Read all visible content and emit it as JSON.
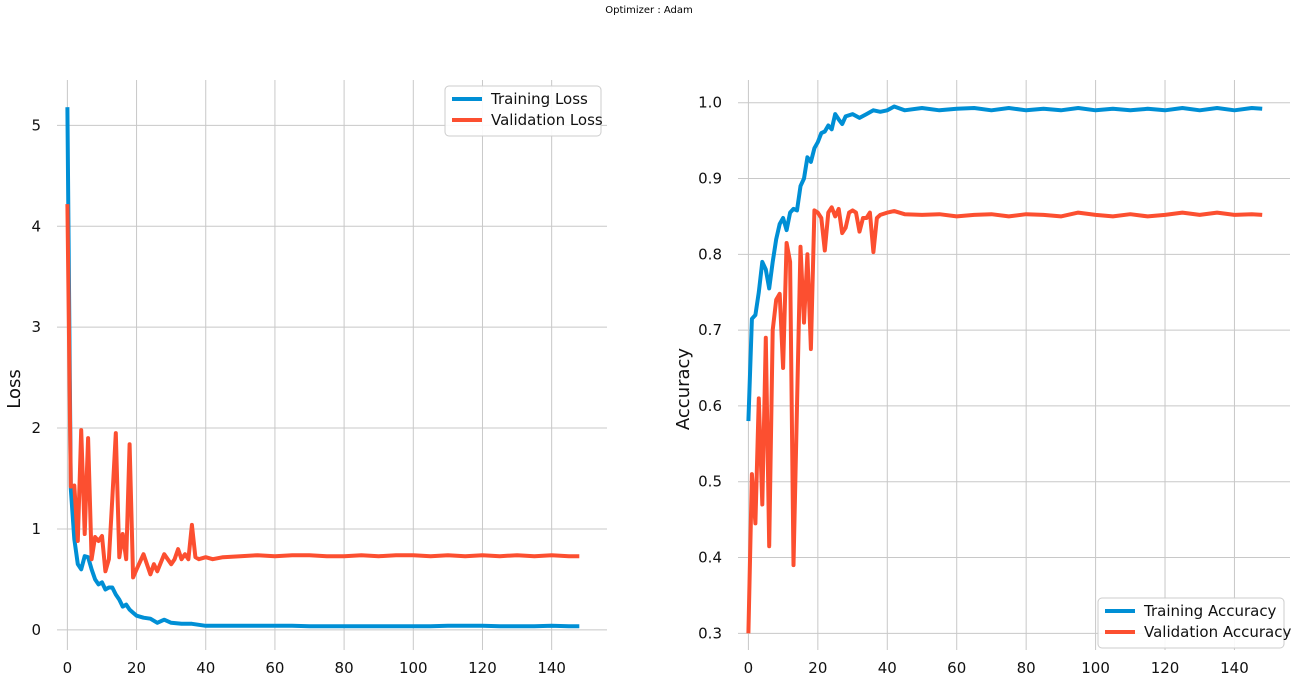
{
  "suptitle": "Optimizer : Adam",
  "colors": {
    "training": "#008fd5",
    "validation": "#fc4f30",
    "grid": "#c8c8c8"
  },
  "chart_data": [
    {
      "type": "line",
      "ylabel": "Loss",
      "xlim": [
        -3,
        156
      ],
      "ylim": [
        -0.2,
        5.45
      ],
      "xticks": [
        0,
        20,
        40,
        60,
        80,
        100,
        120,
        140
      ],
      "yticks": [
        0,
        1,
        2,
        3,
        4,
        5
      ],
      "legend": "top-right",
      "grid": true,
      "series": [
        {
          "name": "Training Loss",
          "color": "#008fd5",
          "points": [
            [
              0,
              5.18
            ],
            [
              1,
              1.4
            ],
            [
              2,
              0.9
            ],
            [
              3,
              0.65
            ],
            [
              4,
              0.6
            ],
            [
              5,
              0.73
            ],
            [
              6,
              0.72
            ],
            [
              7,
              0.6
            ],
            [
              8,
              0.5
            ],
            [
              9,
              0.45
            ],
            [
              10,
              0.47
            ],
            [
              11,
              0.4
            ],
            [
              12,
              0.42
            ],
            [
              13,
              0.42
            ],
            [
              14,
              0.35
            ],
            [
              15,
              0.3
            ],
            [
              16,
              0.23
            ],
            [
              17,
              0.25
            ],
            [
              18,
              0.2
            ],
            [
              19,
              0.17
            ],
            [
              20,
              0.14
            ],
            [
              22,
              0.12
            ],
            [
              24,
              0.11
            ],
            [
              26,
              0.07
            ],
            [
              28,
              0.1
            ],
            [
              30,
              0.07
            ],
            [
              33,
              0.06
            ],
            [
              36,
              0.06
            ],
            [
              40,
              0.04
            ],
            [
              45,
              0.04
            ],
            [
              50,
              0.04
            ],
            [
              55,
              0.04
            ],
            [
              60,
              0.04
            ],
            [
              65,
              0.04
            ],
            [
              70,
              0.035
            ],
            [
              75,
              0.035
            ],
            [
              80,
              0.035
            ],
            [
              85,
              0.035
            ],
            [
              90,
              0.035
            ],
            [
              95,
              0.035
            ],
            [
              100,
              0.035
            ],
            [
              105,
              0.035
            ],
            [
              110,
              0.04
            ],
            [
              115,
              0.04
            ],
            [
              120,
              0.04
            ],
            [
              125,
              0.035
            ],
            [
              130,
              0.035
            ],
            [
              135,
              0.035
            ],
            [
              140,
              0.04
            ],
            [
              145,
              0.035
            ],
            [
              148,
              0.035
            ]
          ]
        },
        {
          "name": "Validation Loss",
          "color": "#fc4f30",
          "points": [
            [
              0,
              4.22
            ],
            [
              1,
              1.42
            ],
            [
              2,
              1.43
            ],
            [
              3,
              0.88
            ],
            [
              4,
              1.98
            ],
            [
              5,
              0.95
            ],
            [
              6,
              1.9
            ],
            [
              7,
              0.7
            ],
            [
              8,
              0.92
            ],
            [
              9,
              0.88
            ],
            [
              10,
              0.93
            ],
            [
              11,
              0.58
            ],
            [
              12,
              0.7
            ],
            [
              13,
              1.3
            ],
            [
              14,
              1.95
            ],
            [
              15,
              0.72
            ],
            [
              16,
              0.95
            ],
            [
              17,
              0.7
            ],
            [
              18,
              1.84
            ],
            [
              19,
              0.52
            ],
            [
              20,
              0.6
            ],
            [
              22,
              0.75
            ],
            [
              24,
              0.55
            ],
            [
              25,
              0.65
            ],
            [
              26,
              0.58
            ],
            [
              28,
              0.75
            ],
            [
              30,
              0.65
            ],
            [
              31,
              0.7
            ],
            [
              32,
              0.8
            ],
            [
              33,
              0.7
            ],
            [
              34,
              0.75
            ],
            [
              35,
              0.7
            ],
            [
              36,
              1.04
            ],
            [
              37,
              0.72
            ],
            [
              38,
              0.7
            ],
            [
              40,
              0.72
            ],
            [
              42,
              0.7
            ],
            [
              45,
              0.72
            ],
            [
              50,
              0.73
            ],
            [
              55,
              0.74
            ],
            [
              60,
              0.73
            ],
            [
              65,
              0.74
            ],
            [
              70,
              0.74
            ],
            [
              75,
              0.73
            ],
            [
              80,
              0.73
            ],
            [
              85,
              0.74
            ],
            [
              90,
              0.73
            ],
            [
              95,
              0.74
            ],
            [
              100,
              0.74
            ],
            [
              105,
              0.73
            ],
            [
              110,
              0.74
            ],
            [
              115,
              0.73
            ],
            [
              120,
              0.74
            ],
            [
              125,
              0.73
            ],
            [
              130,
              0.74
            ],
            [
              135,
              0.73
            ],
            [
              140,
              0.74
            ],
            [
              145,
              0.73
            ],
            [
              148,
              0.73
            ]
          ]
        }
      ]
    },
    {
      "type": "line",
      "ylabel": "Accuracy",
      "xlim": [
        -3,
        156
      ],
      "ylim": [
        0.278,
        1.03
      ],
      "xticks": [
        0,
        20,
        40,
        60,
        80,
        100,
        120,
        140
      ],
      "yticks": [
        0.3,
        0.4,
        0.5,
        0.6,
        0.7,
        0.8,
        0.9,
        1.0
      ],
      "legend": "bottom-right",
      "grid": true,
      "series": [
        {
          "name": "Training Accuracy",
          "color": "#008fd5",
          "points": [
            [
              0,
              0.58
            ],
            [
              1,
              0.715
            ],
            [
              2,
              0.72
            ],
            [
              3,
              0.75
            ],
            [
              4,
              0.79
            ],
            [
              5,
              0.78
            ],
            [
              6,
              0.755
            ],
            [
              7,
              0.79
            ],
            [
              8,
              0.82
            ],
            [
              9,
              0.84
            ],
            [
              10,
              0.848
            ],
            [
              11,
              0.832
            ],
            [
              12,
              0.855
            ],
            [
              13,
              0.86
            ],
            [
              14,
              0.858
            ],
            [
              15,
              0.89
            ],
            [
              16,
              0.9
            ],
            [
              17,
              0.928
            ],
            [
              18,
              0.922
            ],
            [
              19,
              0.94
            ],
            [
              20,
              0.948
            ],
            [
              21,
              0.96
            ],
            [
              22,
              0.962
            ],
            [
              23,
              0.97
            ],
            [
              24,
              0.965
            ],
            [
              25,
              0.985
            ],
            [
              26,
              0.978
            ],
            [
              27,
              0.972
            ],
            [
              28,
              0.982
            ],
            [
              30,
              0.985
            ],
            [
              32,
              0.98
            ],
            [
              34,
              0.985
            ],
            [
              36,
              0.99
            ],
            [
              38,
              0.988
            ],
            [
              40,
              0.99
            ],
            [
              42,
              0.995
            ],
            [
              45,
              0.99
            ],
            [
              50,
              0.993
            ],
            [
              55,
              0.99
            ],
            [
              60,
              0.992
            ],
            [
              65,
              0.993
            ],
            [
              70,
              0.99
            ],
            [
              75,
              0.993
            ],
            [
              80,
              0.99
            ],
            [
              85,
              0.992
            ],
            [
              90,
              0.99
            ],
            [
              95,
              0.993
            ],
            [
              100,
              0.99
            ],
            [
              105,
              0.992
            ],
            [
              110,
              0.99
            ],
            [
              115,
              0.992
            ],
            [
              120,
              0.99
            ],
            [
              125,
              0.993
            ],
            [
              130,
              0.99
            ],
            [
              135,
              0.993
            ],
            [
              140,
              0.99
            ],
            [
              145,
              0.993
            ],
            [
              148,
              0.992
            ]
          ]
        },
        {
          "name": "Validation Accuracy",
          "color": "#fc4f30",
          "points": [
            [
              0,
              0.3
            ],
            [
              1,
              0.51
            ],
            [
              2,
              0.445
            ],
            [
              3,
              0.61
            ],
            [
              4,
              0.47
            ],
            [
              5,
              0.69
            ],
            [
              6,
              0.415
            ],
            [
              7,
              0.7
            ],
            [
              8,
              0.74
            ],
            [
              9,
              0.748
            ],
            [
              10,
              0.65
            ],
            [
              11,
              0.815
            ],
            [
              12,
              0.79
            ],
            [
              13,
              0.39
            ],
            [
              14,
              0.6
            ],
            [
              15,
              0.81
            ],
            [
              16,
              0.71
            ],
            [
              17,
              0.8
            ],
            [
              18,
              0.675
            ],
            [
              19,
              0.858
            ],
            [
              20,
              0.855
            ],
            [
              21,
              0.848
            ],
            [
              22,
              0.805
            ],
            [
              23,
              0.855
            ],
            [
              24,
              0.862
            ],
            [
              25,
              0.85
            ],
            [
              26,
              0.86
            ],
            [
              27,
              0.828
            ],
            [
              28,
              0.835
            ],
            [
              29,
              0.855
            ],
            [
              30,
              0.858
            ],
            [
              31,
              0.855
            ],
            [
              32,
              0.83
            ],
            [
              33,
              0.848
            ],
            [
              34,
              0.848
            ],
            [
              35,
              0.855
            ],
            [
              36,
              0.803
            ],
            [
              37,
              0.848
            ],
            [
              38,
              0.852
            ],
            [
              40,
              0.855
            ],
            [
              42,
              0.857
            ],
            [
              45,
              0.853
            ],
            [
              50,
              0.852
            ],
            [
              55,
              0.853
            ],
            [
              60,
              0.85
            ],
            [
              65,
              0.852
            ],
            [
              70,
              0.853
            ],
            [
              75,
              0.85
            ],
            [
              80,
              0.853
            ],
            [
              85,
              0.852
            ],
            [
              90,
              0.85
            ],
            [
              95,
              0.855
            ],
            [
              100,
              0.852
            ],
            [
              105,
              0.85
            ],
            [
              110,
              0.853
            ],
            [
              115,
              0.85
            ],
            [
              120,
              0.852
            ],
            [
              125,
              0.855
            ],
            [
              130,
              0.852
            ],
            [
              135,
              0.855
            ],
            [
              140,
              0.852
            ],
            [
              145,
              0.853
            ],
            [
              148,
              0.852
            ]
          ]
        }
      ]
    }
  ]
}
